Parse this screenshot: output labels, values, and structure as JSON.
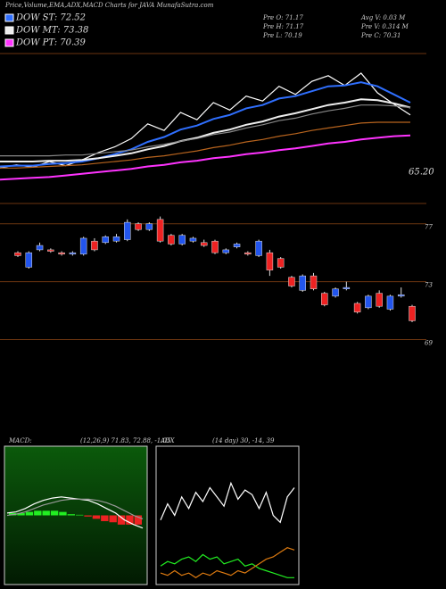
{
  "chart_data": [
    {
      "type": "line",
      "title": "Price,Volume,EMA,ADX,MACD Charts for JAVA MunafaSutra.com",
      "info": [
        "Pre  O: 71.17",
        "Avg V: 0.03 M",
        "Pre  H: 71.17",
        "Pre  V: 0.314  M",
        "Pre  L: 70.19",
        "Pre  C: 70.31"
      ],
      "annotation": "65.20",
      "ylim": [
        62,
        80
      ],
      "series": [
        {
          "color": "#ffffff",
          "values": [
            66.0,
            66.4,
            66.1,
            66.8,
            66.3,
            67.0,
            67.9,
            68.6,
            69.6,
            71.4,
            70.6,
            72.8,
            71.9,
            74.0,
            73.1,
            74.8,
            74.2,
            76.0,
            75.0,
            76.6,
            77.3,
            76.1,
            77.6,
            75.2,
            73.8,
            72.5
          ]
        },
        {
          "name": "DOW ST: 72.52",
          "color": "#2f6fff",
          "values": [
            66.2,
            66.3,
            66.3,
            66.5,
            66.6,
            66.8,
            67.2,
            67.7,
            68.3,
            69.2,
            69.8,
            70.7,
            71.2,
            72.0,
            72.5,
            73.3,
            73.7,
            74.5,
            74.8,
            75.4,
            76.0,
            76.1,
            76.5,
            76.0,
            75.0,
            74.0
          ]
        },
        {
          "name": "DOW MT: 73.38",
          "color": "#eeeeee",
          "values": [
            66.8,
            66.8,
            66.8,
            66.9,
            66.9,
            67.0,
            67.2,
            67.5,
            67.8,
            68.3,
            68.7,
            69.3,
            69.7,
            70.3,
            70.7,
            71.3,
            71.7,
            72.3,
            72.7,
            73.2,
            73.7,
            74.0,
            74.4,
            74.3,
            73.9,
            73.4
          ]
        },
        {
          "color": "#888888",
          "values": [
            67.5,
            67.5,
            67.5,
            67.5,
            67.6,
            67.6,
            67.8,
            68.0,
            68.2,
            68.6,
            68.9,
            69.3,
            69.6,
            70.1,
            70.4,
            70.9,
            71.3,
            71.8,
            72.1,
            72.6,
            73.0,
            73.3,
            73.7,
            73.7,
            73.6,
            73.4
          ]
        },
        {
          "color": "#b8641e",
          "values": [
            66.0,
            66.0,
            66.1,
            66.2,
            66.3,
            66.4,
            66.6,
            66.8,
            67.0,
            67.3,
            67.5,
            67.8,
            68.1,
            68.5,
            68.8,
            69.2,
            69.5,
            69.9,
            70.2,
            70.6,
            70.9,
            71.2,
            71.5,
            71.6,
            71.6,
            71.6
          ]
        },
        {
          "name": "DOW PT: 70.39",
          "color": "#ff33ff",
          "values": [
            64.6,
            64.7,
            64.8,
            64.9,
            65.1,
            65.3,
            65.5,
            65.7,
            65.9,
            66.2,
            66.4,
            66.7,
            66.9,
            67.2,
            67.4,
            67.7,
            67.9,
            68.2,
            68.4,
            68.7,
            69.0,
            69.2,
            69.5,
            69.7,
            69.9,
            70.0
          ]
        }
      ]
    },
    {
      "type": "candlestick",
      "ylim": [
        67.8,
        78.4
      ],
      "yticks": [
        69,
        73,
        77
      ],
      "grid": true,
      "up_color": "#2255ee",
      "down_color": "#ee2222",
      "open": [
        75.0,
        74.0,
        75.2,
        75.2,
        75.0,
        74.9,
        74.9,
        75.8,
        75.7,
        75.8,
        75.9,
        77.0,
        76.6,
        77.3,
        76.2,
        75.6,
        75.8,
        75.7,
        75.8,
        75.0,
        75.4,
        75.0,
        74.8,
        75.0,
        74.6,
        73.3,
        72.4,
        73.4,
        72.2,
        72.0,
        72.5,
        71.5,
        71.2,
        72.2,
        71.1,
        72.0,
        71.3
      ],
      "high": [
        75.1,
        75.1,
        75.7,
        75.3,
        75.1,
        75.1,
        76.1,
        76.0,
        76.2,
        76.3,
        77.3,
        77.1,
        77.1,
        77.5,
        76.3,
        76.3,
        76.1,
        75.9,
        75.9,
        75.3,
        75.7,
        75.1,
        75.9,
        75.2,
        74.7,
        73.4,
        73.5,
        73.6,
        72.3,
        72.6,
        73.0,
        71.6,
        72.1,
        72.4,
        72.1,
        72.6,
        71.4
      ],
      "low": [
        74.7,
        73.9,
        75.1,
        75.0,
        74.8,
        74.8,
        74.8,
        75.1,
        75.6,
        75.7,
        75.8,
        76.5,
        76.5,
        75.7,
        75.5,
        75.5,
        75.7,
        75.4,
        74.9,
        74.9,
        75.3,
        74.8,
        74.7,
        73.4,
        73.9,
        72.6,
        72.3,
        72.4,
        71.3,
        71.9,
        72.4,
        70.8,
        71.1,
        71.2,
        71.0,
        71.9,
        70.2
      ],
      "close": [
        74.8,
        75.0,
        75.5,
        75.1,
        74.9,
        75.0,
        76.0,
        75.2,
        76.1,
        76.1,
        77.1,
        76.6,
        77.0,
        75.8,
        75.6,
        76.2,
        76.0,
        75.5,
        75.0,
        75.2,
        75.6,
        74.9,
        75.8,
        73.8,
        74.0,
        72.7,
        73.4,
        72.5,
        71.4,
        72.5,
        72.6,
        70.9,
        72.0,
        71.3,
        72.0,
        72.1,
        70.3
      ]
    },
    {
      "type": "macd",
      "title": "MACD:",
      "subtitle": "(12,26,9) 71.83, 72.88, -1.05",
      "ylim": [
        -6,
        6
      ],
      "up_color": "#22ee22",
      "down_color": "#ee2222",
      "series": [
        {
          "color": "#ffffff",
          "values": [
            0.2,
            0.3,
            0.6,
            1.0,
            1.3,
            1.5,
            1.6,
            1.5,
            1.4,
            1.3,
            1.0,
            0.6,
            0.2,
            -0.4,
            -0.8,
            -1.1
          ]
        },
        {
          "color": "#999999",
          "values": [
            0.0,
            0.1,
            0.3,
            0.6,
            0.9,
            1.1,
            1.3,
            1.4,
            1.4,
            1.4,
            1.3,
            1.1,
            0.8,
            0.4,
            0.0,
            -0.3
          ]
        }
      ],
      "histogram": [
        0.2,
        0.2,
        0.3,
        0.4,
        0.4,
        0.4,
        0.3,
        0.1,
        0.05,
        -0.1,
        -0.3,
        -0.5,
        -0.6,
        -0.8,
        -0.8,
        -0.8
      ]
    },
    {
      "type": "adx",
      "title": "ADX",
      "subtitle": "(14 day) 30, -14, 39",
      "ylim": [
        0,
        60
      ],
      "series": [
        {
          "color": "#ffffff",
          "values": [
            28,
            35,
            30,
            38,
            33,
            40,
            36,
            42,
            38,
            34,
            44,
            37,
            41,
            39,
            33,
            40,
            30,
            27,
            38,
            42
          ]
        },
        {
          "color": "#22ee22",
          "values": [
            8,
            10,
            9,
            11,
            12,
            10,
            13,
            11,
            12,
            9,
            10,
            11,
            8,
            9,
            7,
            6,
            5,
            4,
            3,
            3
          ]
        },
        {
          "color": "#dd7a10",
          "values": [
            5,
            4,
            6,
            4,
            5,
            3,
            5,
            4,
            6,
            5,
            4,
            6,
            5,
            7,
            9,
            11,
            12,
            14,
            16,
            15
          ]
        }
      ]
    }
  ]
}
